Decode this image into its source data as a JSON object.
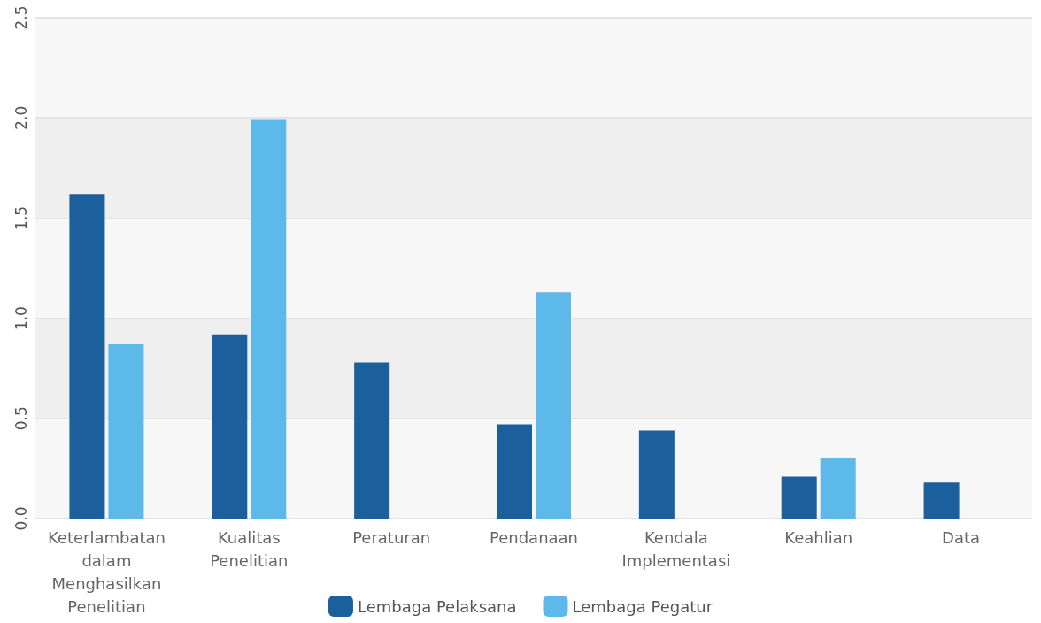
{
  "chart_data": {
    "type": "bar",
    "categories": [
      "Keterlambatan\ndalam\nMenghasilkan\nPenelitian",
      "Kualitas\nPenelitian",
      "Peraturan",
      "Pendanaan",
      "Kendala\nImplementasi",
      "Keahlian",
      "Data"
    ],
    "series": [
      {
        "name": "Lembaga Pelaksana",
        "color": "#1b5f9c",
        "values": [
          1.62,
          0.92,
          0.78,
          0.47,
          0.44,
          0.21,
          0.18
        ]
      },
      {
        "name": "Lembaga Pegatur",
        "color": "#5cb9e9",
        "values": [
          0.87,
          1.99,
          null,
          1.13,
          null,
          0.3,
          null
        ]
      }
    ],
    "ylim": [
      0,
      2.5
    ],
    "yticks": [
      {
        "value": 0,
        "label": "0.0"
      },
      {
        "value": 0.5,
        "label": "0.5"
      },
      {
        "value": 1,
        "label": "1.0"
      },
      {
        "value": 1.5,
        "label": "1.5"
      },
      {
        "value": 2,
        "label": "2.0"
      },
      {
        "value": 2.5,
        "label": "2.5"
      }
    ],
    "grid": "y",
    "legend": "bottom"
  }
}
